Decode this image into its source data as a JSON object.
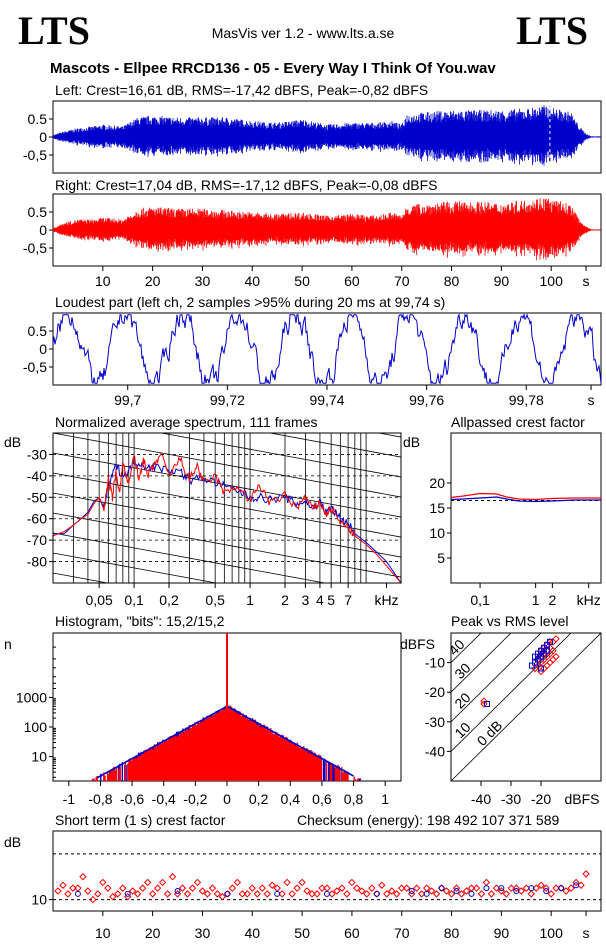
{
  "header": {
    "logo_left": "LTS",
    "logo_right": "LTS",
    "app": "MasVis ver 1.2 - www.lts.a.se",
    "title": "Mascots - Ellpee RRCD136 - 05 - Every Way I Think Of You.wav"
  },
  "colors": {
    "left": "#0000cc",
    "right": "#ff0000"
  },
  "chart_data": [
    {
      "id": "left-waveform",
      "type": "line",
      "title": "Left: Crest=16,61 dB, RMS=-17,42 dBFS, Peak=-0,82 dBFS",
      "yticks": [
        "0.5",
        "0",
        "-0,5"
      ],
      "ytick_values": [
        0.5,
        0,
        -0.5
      ],
      "ylim": [
        -1,
        1
      ],
      "xlim": [
        0,
        110
      ],
      "marker_x": 99.74,
      "envelope_x": [
        0,
        2,
        5,
        8,
        10,
        14,
        17,
        20,
        25,
        30,
        35,
        40,
        45,
        50,
        55,
        60,
        65,
        68,
        70,
        71,
        75,
        80,
        85,
        90,
        95,
        99,
        100,
        102,
        104,
        105,
        106,
        107,
        108
      ],
      "envelope_y": [
        0.05,
        0.15,
        0.25,
        0.3,
        0.35,
        0.3,
        0.55,
        0.6,
        0.55,
        0.55,
        0.55,
        0.45,
        0.4,
        0.5,
        0.35,
        0.4,
        0.4,
        0.45,
        0.35,
        0.65,
        0.7,
        0.75,
        0.75,
        0.75,
        0.8,
        0.9,
        0.85,
        0.75,
        0.7,
        0.45,
        0.25,
        0.1,
        0.02
      ]
    },
    {
      "id": "right-waveform",
      "type": "line",
      "title": "Right: Crest=17,04 dB, RMS=-17,12 dBFS, Peak=-0,08 dBFS",
      "yticks": [
        "0.5",
        "0",
        "-0,5"
      ],
      "ytick_values": [
        0.5,
        0,
        -0.5
      ],
      "ylim": [
        -1,
        1
      ],
      "xlim": [
        0,
        110
      ],
      "xticks": [
        "10",
        "20",
        "30",
        "40",
        "50",
        "60",
        "70",
        "80",
        "90",
        "100",
        "s"
      ],
      "xtick_values": [
        10,
        20,
        30,
        40,
        50,
        60,
        70,
        80,
        90,
        100,
        107
      ],
      "envelope_x": [
        0,
        2,
        5,
        8,
        10,
        14,
        17,
        20,
        25,
        30,
        35,
        40,
        45,
        50,
        55,
        60,
        65,
        68,
        70,
        71,
        75,
        80,
        85,
        90,
        95,
        99,
        100,
        102,
        104,
        105,
        106,
        107,
        108
      ],
      "envelope_y": [
        0.05,
        0.2,
        0.3,
        0.3,
        0.35,
        0.3,
        0.6,
        0.65,
        0.6,
        0.6,
        0.55,
        0.5,
        0.45,
        0.5,
        0.4,
        0.45,
        0.4,
        0.5,
        0.4,
        0.7,
        0.75,
        0.8,
        0.8,
        0.75,
        0.85,
        0.95,
        0.85,
        0.8,
        0.7,
        0.45,
        0.25,
        0.1,
        0.02
      ]
    },
    {
      "id": "loudest-part",
      "type": "line",
      "title": "Loudest part (left  ch, 2 samples >95% during 20 ms at 99,74 s)",
      "yticks": [
        "0.5",
        "0",
        "-0,5"
      ],
      "ytick_values": [
        0.5,
        0,
        -0.5
      ],
      "ylim": [
        -1,
        1
      ],
      "xlim": [
        99.685,
        99.795
      ],
      "xticks": [
        "99,7",
        "99,72",
        "99,74",
        "99,76",
        "99,78",
        "s"
      ],
      "xtick_values": [
        99.7,
        99.72,
        99.74,
        99.76,
        99.78,
        99.793
      ]
    },
    {
      "id": "spectrum",
      "type": "line",
      "title": "Normalized average spectrum, 111 frames",
      "ylabel": "dB",
      "yticks": [
        "-30",
        "-40",
        "-50",
        "-60",
        "-70",
        "-80"
      ],
      "ytick_values": [
        -30,
        -40,
        -50,
        -60,
        -70,
        -80
      ],
      "ylim": [
        -90,
        -20
      ],
      "xticks": [
        "0,05",
        "0,1",
        "0,2",
        "0,5",
        "1",
        "2",
        "3",
        "4",
        "5",
        "7",
        "kHz"
      ],
      "xtick_values": [
        0.05,
        0.1,
        0.2,
        0.5,
        1,
        2,
        3,
        4,
        5,
        7,
        15
      ],
      "xlim": [
        0.02,
        20
      ],
      "log_x": true,
      "grid": true,
      "series": [
        {
          "color": "blue",
          "x": [
            0.02,
            0.025,
            0.03,
            0.035,
            0.04,
            0.045,
            0.05,
            0.055,
            0.06,
            0.07,
            0.08,
            0.09,
            0.1,
            0.12,
            0.15,
            0.2,
            0.25,
            0.3,
            0.4,
            0.5,
            0.6,
            0.8,
            1,
            1.2,
            1.5,
            2,
            2.5,
            3,
            3.5,
            4,
            4.5,
            5,
            6,
            7,
            8,
            10,
            12,
            15,
            20
          ],
          "y": [
            -67,
            -67,
            -63,
            -60,
            -57,
            -52,
            -50,
            -55,
            -45,
            -35,
            -40,
            -38,
            -33,
            -35,
            -36,
            -37,
            -38,
            -42,
            -41,
            -43,
            -45,
            -47,
            -50,
            -50,
            -51,
            -50,
            -53,
            -52,
            -55,
            -52,
            -57,
            -55,
            -60,
            -62,
            -67,
            -71,
            -75,
            -80,
            -90
          ]
        },
        {
          "color": "red",
          "x": [
            0.02,
            0.025,
            0.03,
            0.035,
            0.04,
            0.045,
            0.05,
            0.055,
            0.06,
            0.065,
            0.07,
            0.075,
            0.08,
            0.09,
            0.1,
            0.11,
            0.12,
            0.13,
            0.15,
            0.17,
            0.2,
            0.25,
            0.3,
            0.35,
            0.4,
            0.5,
            0.6,
            0.8,
            1,
            1.2,
            1.5,
            2,
            2.5,
            3,
            3.5,
            4,
            4.5,
            5,
            6,
            7,
            8,
            10,
            12,
            15,
            20
          ],
          "y": [
            -68,
            -66,
            -63,
            -60,
            -58,
            -53,
            -50,
            -56,
            -42,
            -50,
            -38,
            -48,
            -34,
            -45,
            -30,
            -42,
            -32,
            -40,
            -35,
            -30,
            -40,
            -32,
            -42,
            -35,
            -44,
            -40,
            -48,
            -45,
            -52,
            -44,
            -53,
            -49,
            -55,
            -50,
            -56,
            -52,
            -58,
            -55,
            -62,
            -64,
            -68,
            -72,
            -76,
            -82,
            -90
          ]
        }
      ]
    },
    {
      "id": "allpassed-crest",
      "type": "line",
      "title": "Allpassed crest factor",
      "ylabel": "dB",
      "yticks": [
        "20",
        "15",
        "10",
        "5"
      ],
      "ytick_values": [
        20,
        15,
        10,
        5
      ],
      "ylim": [
        0,
        30
      ],
      "xticks": [
        "0,1",
        "1",
        "2",
        "kHz"
      ],
      "xtick_values": [
        0.1,
        1,
        2,
        9
      ],
      "xlim": [
        0.03,
        15
      ],
      "log_x": true,
      "reference_y": 16.5,
      "series": [
        {
          "color": "red",
          "x": [
            0.03,
            0.05,
            0.1,
            0.2,
            0.3,
            0.5,
            1,
            2,
            5,
            15
          ],
          "y": [
            17.1,
            17.4,
            17.9,
            17.8,
            17.2,
            16.8,
            16.7,
            16.9,
            17.0,
            17.0
          ]
        },
        {
          "color": "blue",
          "x": [
            0.03,
            0.05,
            0.1,
            0.2,
            0.3,
            0.5,
            1,
            2,
            5,
            15
          ],
          "y": [
            16.7,
            16.8,
            17.0,
            17.2,
            16.8,
            16.4,
            16.3,
            16.4,
            16.6,
            16.6
          ]
        }
      ]
    },
    {
      "id": "histogram",
      "type": "bar",
      "title": "Histogram, \"bits\": 15,2/15,2",
      "ylabel": "n",
      "yticks": [
        "1000",
        "100",
        "10"
      ],
      "ytick_values": [
        1000,
        100,
        10
      ],
      "log_y": true,
      "ylim": [
        1.5,
        150000
      ],
      "xticks": [
        "-1",
        "-0,8",
        "-0,6",
        "-0,4",
        "-0,2",
        "0",
        "0,2",
        "0,4",
        "0,6",
        "0,8",
        "1"
      ],
      "xtick_values": [
        -1,
        -0.8,
        -0.6,
        -0.4,
        -0.2,
        0,
        0.2,
        0.4,
        0.6,
        0.8,
        1
      ],
      "xlim": [
        -1.1,
        1.1
      ],
      "center_count": 500,
      "tail_count": 3,
      "tail_extent": 0.95,
      "peak_at_zero": 150000
    },
    {
      "id": "peak-vs-rms",
      "type": "scatter",
      "title": "Peak vs RMS level",
      "ylabel": "dBFS",
      "xlabel": "dBFS",
      "yticks": [
        "-10",
        "-20",
        "-30",
        "-40"
      ],
      "ytick_values": [
        -10,
        -20,
        -30,
        -40
      ],
      "xticks": [
        "-40",
        "-30",
        "-20"
      ],
      "xtick_values": [
        -40,
        -30,
        -20
      ],
      "xlim": [
        -50,
        0
      ],
      "ylim": [
        -50,
        0
      ],
      "crest_lines": [
        "0 dB",
        "10",
        "20",
        "30",
        "40"
      ],
      "crest_line_values": [
        0,
        10,
        20,
        30,
        40
      ],
      "series": [
        {
          "color": "red",
          "x": [
            -22,
            -21,
            -20,
            -19,
            -18,
            -17,
            -16,
            -21,
            -20,
            -19,
            -18,
            -17,
            -20,
            -19,
            -18,
            -17,
            -16,
            -15,
            -18,
            -17,
            -16,
            -15,
            -39,
            -39,
            -20,
            -19
          ],
          "y": [
            -12,
            -11,
            -10,
            -9,
            -8,
            -7,
            -6,
            -9,
            -8,
            -7,
            -6,
            -5,
            -6,
            -5,
            -4,
            -3,
            -3,
            -2,
            -11,
            -10,
            -9,
            -8,
            -24,
            -23,
            -13,
            -12
          ]
        },
        {
          "color": "blue",
          "x": [
            -23,
            -22,
            -21,
            -20,
            -19,
            -18,
            -22,
            -21,
            -20,
            -19,
            -18,
            -17,
            -38,
            -20
          ],
          "y": [
            -11,
            -10,
            -9,
            -8,
            -7,
            -6,
            -8,
            -7,
            -6,
            -5,
            -4,
            -3,
            -24,
            -12
          ]
        }
      ]
    },
    {
      "id": "short-term-crest",
      "type": "scatter",
      "title": "Short term (1 s) crest factor",
      "checksum": "Checksum (energy):  198 492 107 371 589",
      "ylabel": "dB",
      "yticks": [
        "10"
      ],
      "ytick_values": [
        10
      ],
      "ylim": [
        8,
        22
      ],
      "xlim": [
        0,
        110
      ],
      "reference_y": [
        10,
        18
      ],
      "xticks": [
        "10",
        "20",
        "30",
        "40",
        "50",
        "60",
        "70",
        "80",
        "90",
        "100",
        "s"
      ],
      "xtick_values": [
        10,
        20,
        30,
        40,
        50,
        60,
        70,
        80,
        90,
        100,
        107
      ],
      "series": [
        {
          "color": "red",
          "x": [
            1,
            2,
            3,
            4,
            5,
            6,
            7,
            8,
            9,
            10,
            11,
            12,
            13,
            14,
            15,
            16,
            17,
            18,
            19,
            20,
            21,
            22,
            23,
            24,
            25,
            26,
            27,
            28,
            29,
            30,
            31,
            32,
            33,
            34,
            35,
            36,
            37,
            38,
            39,
            40,
            41,
            42,
            43,
            44,
            45,
            46,
            47,
            48,
            49,
            50,
            51,
            52,
            53,
            54,
            55,
            56,
            57,
            58,
            59,
            60,
            61,
            62,
            63,
            64,
            65,
            66,
            67,
            68,
            69,
            70,
            71,
            72,
            73,
            74,
            75,
            76,
            77,
            78,
            79,
            80,
            81,
            82,
            83,
            84,
            85,
            86,
            87,
            88,
            89,
            90,
            91,
            92,
            93,
            94,
            95,
            96,
            97,
            98,
            99,
            100,
            101,
            102,
            103,
            104,
            105,
            106,
            107
          ],
          "y": [
            11.5,
            12.5,
            11,
            12,
            12,
            14,
            11.5,
            10,
            11,
            13,
            12,
            10.5,
            11,
            12,
            10.5,
            11.5,
            11,
            12,
            13,
            11,
            12,
            13,
            11,
            14,
            11,
            12,
            11,
            12,
            13,
            11.5,
            11,
            12,
            11,
            10.5,
            11,
            12,
            13,
            11,
            11,
            12,
            11,
            12,
            11,
            12.5,
            12,
            11,
            13,
            11,
            12,
            13,
            11.5,
            11,
            11,
            12,
            12,
            11,
            11.5,
            12,
            11,
            13,
            12,
            11.5,
            11,
            12,
            11,
            12.5,
            11,
            11.5,
            11,
            12,
            12,
            11,
            12,
            11,
            12,
            11.5,
            11,
            12,
            11.5,
            11,
            12,
            11,
            11.5,
            12,
            12,
            11,
            13,
            11,
            12,
            11.5,
            11,
            12,
            12,
            11.5,
            12,
            11,
            12,
            12.5,
            12,
            11,
            12,
            12,
            11.5,
            12,
            13,
            12.5,
            14.5
          ]
        },
        {
          "color": "blue",
          "x": [
            5,
            15,
            25,
            35,
            45,
            55,
            65,
            72,
            75,
            78,
            81,
            84,
            87,
            90,
            93,
            96,
            99,
            102,
            105
          ],
          "y": [
            11,
            11,
            11.5,
            11,
            11,
            11,
            11,
            11.5,
            11,
            12,
            11.5,
            11,
            12,
            12,
            11.5,
            12,
            11.5,
            12,
            12.5
          ]
        }
      ]
    }
  ]
}
